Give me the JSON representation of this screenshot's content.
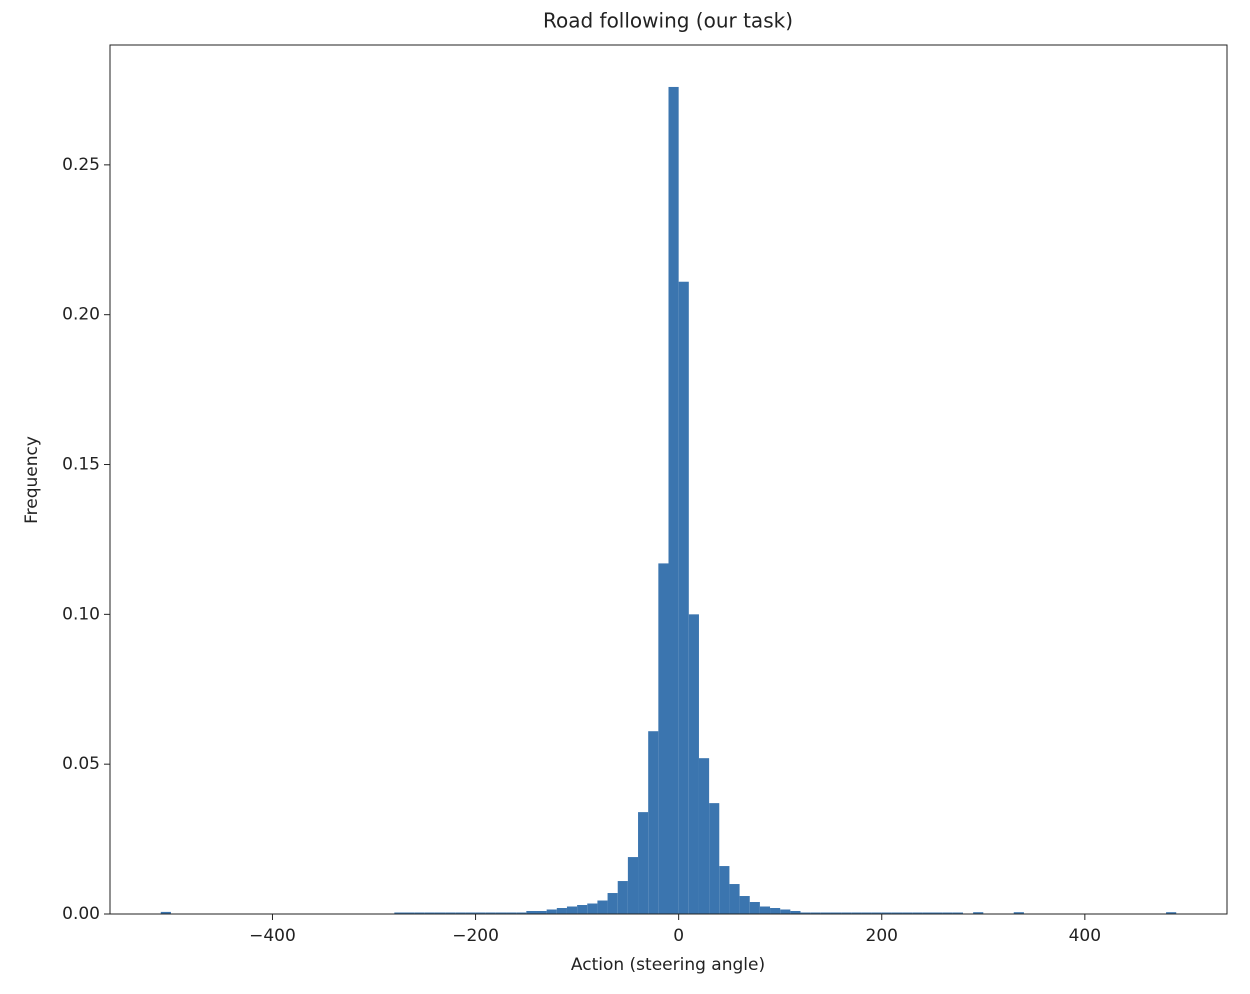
{
  "chart_data": {
    "type": "histogram",
    "title": "Road following (our task)",
    "x_label": "Action (steering angle)",
    "y_label": "Frequency",
    "color": "#3b75af",
    "bins": [
      -510,
      -500,
      -490,
      -480,
      -470,
      -460,
      -450,
      -440,
      -430,
      -420,
      -410,
      -400,
      -390,
      -380,
      -370,
      -360,
      -350,
      -340,
      -330,
      -320,
      -310,
      -300,
      -290,
      -280,
      -270,
      -260,
      -250,
      -240,
      -230,
      -220,
      -210,
      -200,
      -190,
      -180,
      -170,
      -160,
      -150,
      -140,
      -130,
      -120,
      -110,
      -100,
      -90,
      -80,
      -70,
      -60,
      -50,
      -40,
      -30,
      -20,
      -10,
      0,
      10,
      20,
      30,
      40,
      50,
      60,
      70,
      80,
      90,
      100,
      110,
      120,
      130,
      140,
      150,
      160,
      170,
      180,
      190,
      200,
      210,
      220,
      230,
      240,
      250,
      260,
      270,
      280,
      290,
      300,
      310,
      320,
      330,
      340,
      350,
      360,
      370,
      380,
      390,
      400,
      410,
      420,
      430,
      440,
      450,
      460,
      470,
      480,
      490
    ],
    "values": [
      0.0007,
      0,
      0,
      0,
      0,
      0,
      0,
      0,
      0,
      0,
      0,
      0,
      0,
      0,
      0,
      0,
      0,
      0,
      0,
      0,
      0,
      0,
      0,
      0.0005,
      0.0005,
      0.0005,
      0.0005,
      0.0005,
      0.0005,
      0.0005,
      0.0005,
      0.0005,
      0.0005,
      0.0005,
      0.0005,
      0.0005,
      0.001,
      0.001,
      0.0015,
      0.002,
      0.0025,
      0.003,
      0.0035,
      0.0045,
      0.007,
      0.011,
      0.019,
      0.034,
      0.061,
      0.117,
      0.276,
      0.211,
      0.1,
      0.052,
      0.037,
      0.016,
      0.01,
      0.006,
      0.004,
      0.0025,
      0.002,
      0.0015,
      0.001,
      0.0005,
      0.0005,
      0.0005,
      0.0005,
      0.0005,
      0.0005,
      0.0005,
      0.0005,
      0.0005,
      0.0005,
      0.0005,
      0.0005,
      0.0005,
      0.0005,
      0.0005,
      0.0005,
      0,
      0.0006,
      0,
      0,
      0,
      0.0006,
      0,
      0,
      0,
      0,
      0,
      0,
      0,
      0,
      0,
      0,
      0,
      0,
      0,
      0,
      0.0006
    ],
    "xlim": [
      -560,
      540
    ],
    "xticks": [
      {
        "value": -400,
        "label": "−400"
      },
      {
        "value": -200,
        "label": "−200"
      },
      0,
      200,
      400
    ],
    "ylim": [
      0,
      0.29
    ],
    "yticks": [
      {
        "value": 0,
        "label": "0.00"
      },
      {
        "value": 0.05,
        "label": "0.05"
      },
      {
        "value": 0.1,
        "label": "0.10"
      },
      {
        "value": 0.15,
        "label": "0.15"
      },
      {
        "value": 0.2,
        "label": "0.20"
      },
      {
        "value": 0.25,
        "label": "0.25"
      }
    ]
  }
}
